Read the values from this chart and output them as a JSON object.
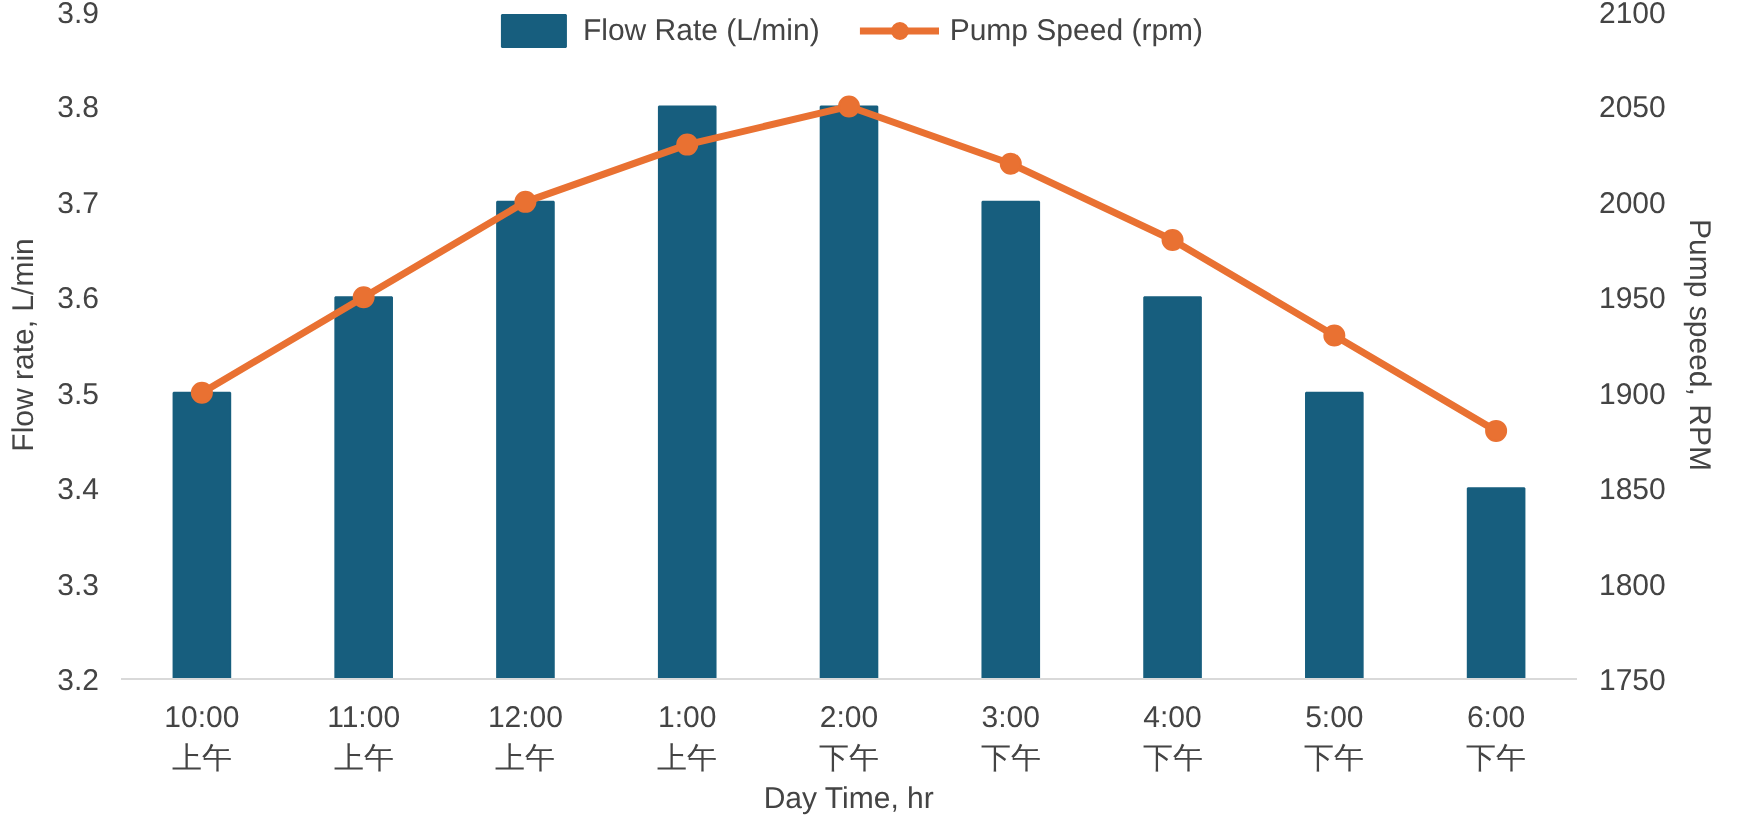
{
  "chart_data": {
    "type": "bar",
    "xlabel": "Day Time, hr",
    "ylabel": "Flow rate, L/min",
    "y2label": "Pump speed, RPM",
    "categories": [
      "10:00 上午",
      "11:00 上午",
      "12:00 上午",
      "1:00 上午",
      "2:00 下午",
      "3:00 下午",
      "4:00 下午",
      "5:00 下午",
      "6:00 下午"
    ],
    "series": [
      {
        "name": "Flow Rate (L/min)",
        "color": "#175e7e",
        "values": [
          3.5,
          3.6,
          3.7,
          3.8,
          3.8,
          3.7,
          3.6,
          3.5,
          3.4
        ]
      },
      {
        "name": "Pump Speed (rpm)",
        "type": "line",
        "axis": "y2",
        "color": "#e97132",
        "values": [
          1900,
          1950,
          2000,
          2030,
          2050,
          2020,
          1980,
          1930,
          1880
        ]
      }
    ],
    "ylim": [
      3.2,
      3.9
    ],
    "yticks": [
      3.2,
      3.3,
      3.4,
      3.5,
      3.6,
      3.7,
      3.8,
      3.9
    ],
    "y2lim": [
      1750,
      2100
    ],
    "y2ticks": [
      1750,
      1800,
      1850,
      1900,
      1950,
      2000,
      2050,
      2100
    ],
    "legend": "top",
    "grid": false,
    "marker": "circle",
    "line_style": "solid"
  }
}
